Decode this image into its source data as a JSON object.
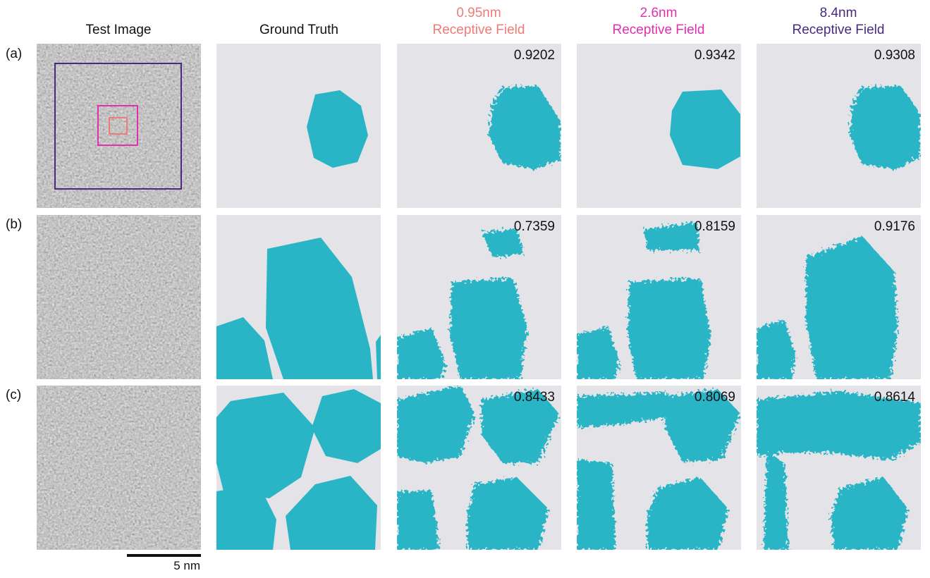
{
  "columns": [
    {
      "title": "Test Image"
    },
    {
      "title": "Ground Truth"
    },
    {
      "size": "0.95nm",
      "title": "Receptive Field"
    },
    {
      "size": "2.6nm",
      "title": "Receptive Field"
    },
    {
      "size": "8.4nm",
      "title": "Receptive Field"
    }
  ],
  "rows": [
    {
      "label": "(a)",
      "scores": [
        0.9202,
        0.9342,
        0.9308
      ]
    },
    {
      "label": "(b)",
      "scores": [
        0.7359,
        0.8159,
        0.9176
      ]
    },
    {
      "label": "(c)",
      "scores": [
        0.8433,
        0.8069,
        0.8614
      ]
    }
  ],
  "scale_bar": "5 nm"
}
